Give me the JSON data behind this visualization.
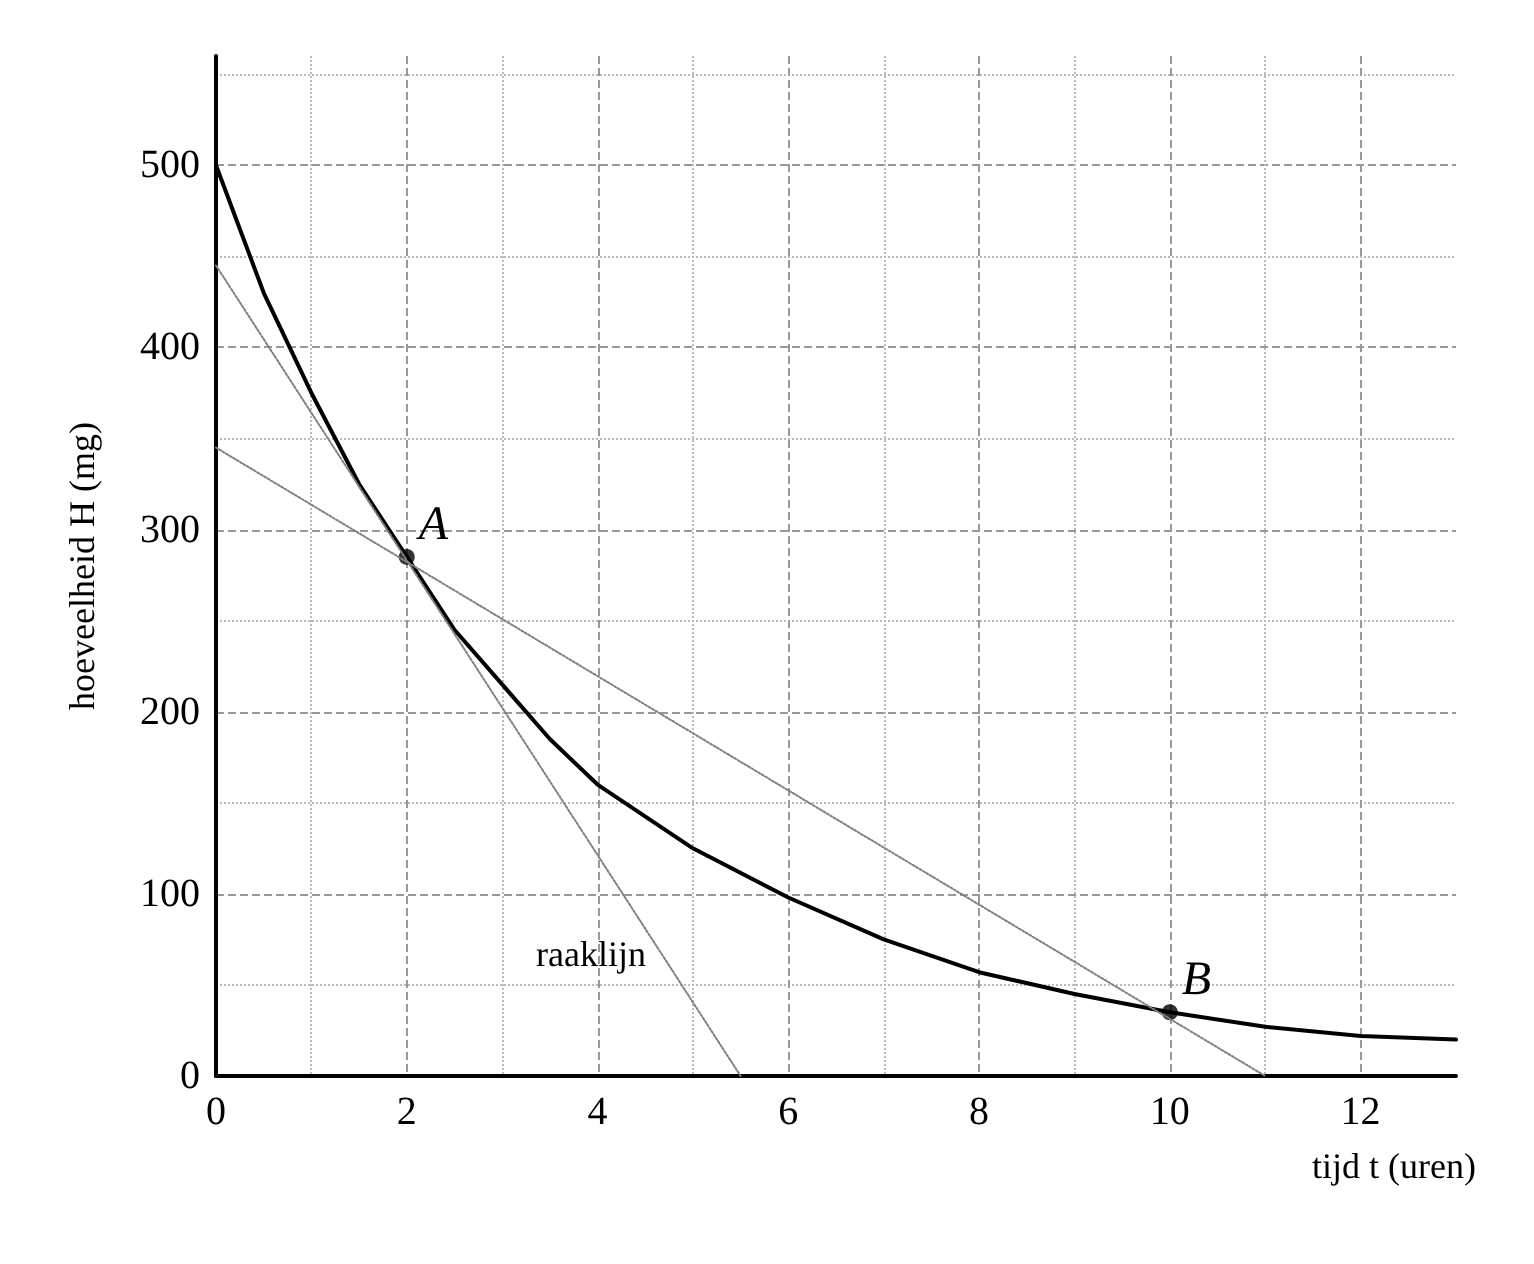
{
  "chart_data": {
    "type": "line",
    "xlabel": "tijd t (uren)",
    "ylabel": "hoeveelheid H (mg)",
    "xlim": [
      0,
      13
    ],
    "ylim": [
      0,
      560
    ],
    "xticks": [
      0,
      2,
      4,
      6,
      8,
      10,
      12
    ],
    "yticks": [
      0,
      100,
      200,
      300,
      400,
      500
    ],
    "grid": true,
    "series": [
      {
        "color": "#000000",
        "line_style": "solid",
        "marker": "none",
        "x": [
          0,
          0.5,
          1,
          1.5,
          2,
          2.5,
          3,
          3.5,
          4,
          5,
          6,
          7,
          8,
          9,
          10,
          11,
          12,
          13
        ],
        "values": [
          500,
          430,
          375,
          325,
          285,
          245,
          215,
          185,
          160,
          125,
          98,
          75,
          57,
          45,
          35,
          27,
          22,
          20
        ]
      },
      {
        "color": "#808080",
        "line_style": "dotted",
        "marker": "none",
        "x": [
          0,
          5.5
        ],
        "values": [
          445,
          0
        ]
      },
      {
        "color": "#808080",
        "line_style": "dotted",
        "marker": "none",
        "x": [
          0,
          11
        ],
        "values": [
          345,
          0
        ]
      },
      {
        "type": "scatter",
        "color": "#000000",
        "marker": "circle",
        "x": [
          2,
          10
        ],
        "values": [
          285,
          35
        ]
      }
    ],
    "annotations": [
      {
        "text": "A",
        "x": 2,
        "y": 285
      },
      {
        "text": "B",
        "x": 10,
        "y": 35
      },
      "raaklijn"
    ]
  }
}
